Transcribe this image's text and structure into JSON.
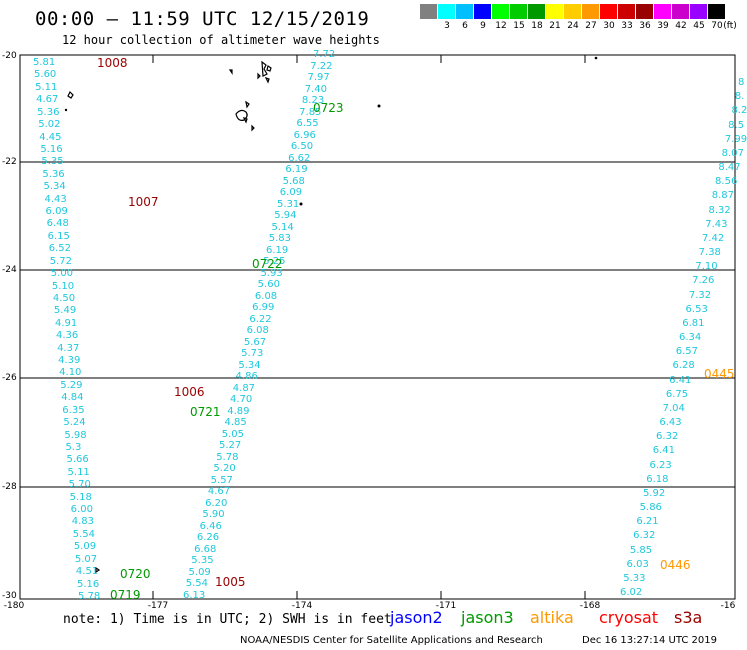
{
  "header": {
    "title": "00:00 – 11:59 UTC 12/15/2019",
    "subtitle": "12 hour collection of altimeter wave heights"
  },
  "color_scale": {
    "unit": "(ft)",
    "entries": [
      {
        "label": "",
        "color": "#808080"
      },
      {
        "label": "3",
        "color": "#00ffff"
      },
      {
        "label": "6",
        "color": "#00bfff"
      },
      {
        "label": "9",
        "color": "#0000ff"
      },
      {
        "label": "12",
        "color": "#00ff00"
      },
      {
        "label": "15",
        "color": "#00cc00"
      },
      {
        "label": "18",
        "color": "#009900"
      },
      {
        "label": "21",
        "color": "#ffff00"
      },
      {
        "label": "24",
        "color": "#ffcc00"
      },
      {
        "label": "27",
        "color": "#ff9900"
      },
      {
        "label": "30",
        "color": "#ff0000"
      },
      {
        "label": "33",
        "color": "#cc0000"
      },
      {
        "label": "36",
        "color": "#990000"
      },
      {
        "label": "39",
        "color": "#ff00ff"
      },
      {
        "label": "42",
        "color": "#cc00cc"
      },
      {
        "label": "45",
        "color": "#9900ff"
      },
      {
        "label": "70",
        "color": "#000000"
      }
    ]
  },
  "axes": {
    "lat_labels": [
      "-20",
      "-22",
      "-24",
      "-26",
      "-28",
      "-30"
    ],
    "lon_labels": [
      "-180",
      "-177",
      "-174",
      "-171",
      "-168",
      "-16"
    ]
  },
  "note": "note: 1) Time is in UTC; 2) SWH is in feet",
  "satellites": [
    {
      "name": "jason2",
      "color": "#0000ff"
    },
    {
      "name": "jason3",
      "color": "#009900"
    },
    {
      "name": "altika",
      "color": "#ff9900"
    },
    {
      "name": "cryosat",
      "color": "#ff0000"
    },
    {
      "name": "s3a",
      "color": "#990000"
    }
  ],
  "credit": "NOAA/NESDIS Center for Satellite Applications and Research",
  "timestamp": "Dec 16 13:27:14 UTC 2019",
  "tracks": {
    "track_a": [
      "5.81",
      "5.60",
      "5.11",
      "4.67",
      "5.36",
      "5.02",
      "4.45",
      "5.16",
      "5.35",
      "5.36",
      "5.34",
      "4.43",
      "6.09",
      "6.48",
      "6.15",
      "6.52",
      "5.72",
      "5.00",
      "5.10",
      "4.50",
      "5.49",
      "4.91",
      "4.36",
      "4.37",
      "4.39",
      "4.10",
      "5.29",
      "4.84",
      "6.35",
      "5.24",
      "5.98",
      "5.3",
      "5.66",
      "5.11",
      "5.70",
      "5.18",
      "6.00",
      "4.83",
      "5.54",
      "5.09",
      "5.07",
      "4.51",
      "5.16",
      "5.78"
    ],
    "track_b": [
      "7.72",
      "7.22",
      "7.97",
      "7.40",
      "8.23",
      "7.85",
      "6.55",
      "6.96",
      "6.50",
      "6.62",
      "6.19",
      "5.68",
      "6.09",
      "5.31",
      "5.94",
      "5.14",
      "5.83",
      "6.19",
      "5.25",
      "5.93",
      "5.60",
      "6.08",
      "6.99",
      "6.22",
      "6.08",
      "5.67",
      "5.73",
      "5.34",
      "4.86",
      "4.87",
      "4.70",
      "4.89",
      "4.85",
      "5.05",
      "5.27",
      "5.78",
      "5.20",
      "5.57",
      "4.67",
      "6.20",
      "5.90",
      "6.46",
      "6.26",
      "6.68",
      "5.35",
      "5.09",
      "5.54",
      "6.13"
    ],
    "track_c": [
      "8",
      "8.",
      "8.2",
      "8.5",
      "7.99",
      "8.07",
      "8.47",
      "8.56",
      "8.87",
      "8.32",
      "7.43",
      "7.42",
      "7.38",
      "7.10",
      "7.26",
      "7.32",
      "6.53",
      "6.81",
      "6.34",
      "6.57",
      "6.28",
      "6.41",
      "6.75",
      "7.04",
      "6.43",
      "6.32",
      "6.41",
      "6.23",
      "6.18",
      "5.92",
      "5.86",
      "6.21",
      "6.32",
      "5.85",
      "6.03",
      "5.33",
      "6.02"
    ]
  },
  "pass_labels": [
    {
      "text": "1008",
      "color": "#990000"
    },
    {
      "text": "0723",
      "color": "#009900"
    },
    {
      "text": "1007",
      "color": "#990000"
    },
    {
      "text": "0722",
      "color": "#009900"
    },
    {
      "text": "0445",
      "color": "#ff9900"
    },
    {
      "text": "1006",
      "color": "#990000"
    },
    {
      "text": "0721",
      "color": "#009900"
    },
    {
      "text": "0720",
      "color": "#009900"
    },
    {
      "text": "1005",
      "color": "#990000"
    },
    {
      "text": "0446",
      "color": "#ff9900"
    },
    {
      "text": "0719",
      "color": "#009900"
    }
  ]
}
